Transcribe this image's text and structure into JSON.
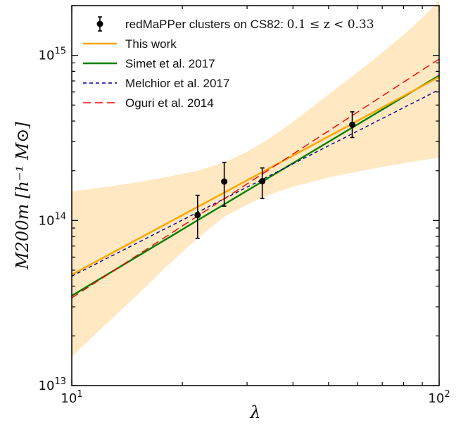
{
  "chart_data": {
    "type": "line",
    "xscale": "log",
    "yscale": "log",
    "xlim": [
      10,
      100
    ],
    "ylim": [
      10000000000000,
      2000000000000000
    ],
    "xlabel": "λ",
    "ylabel": "M200m [h⁻¹ M⊙]",
    "x_ticks": [
      {
        "value": 10,
        "base": "10",
        "exp": "1"
      },
      {
        "value": 100,
        "base": "10",
        "exp": "2"
      }
    ],
    "y_ticks": [
      {
        "value": 10000000000000,
        "base": "10",
        "exp": "13"
      },
      {
        "value": 100000000000000,
        "base": "10",
        "exp": "14"
      },
      {
        "value": 1000000000000000,
        "base": "10",
        "exp": "15"
      }
    ],
    "legend_position": "top-left",
    "legend_entries": [
      {
        "label": "redMaPPer clusters on CS82: ",
        "math": "0.1 ≤ z < 0.33",
        "style": "errorbar",
        "color": "#000000"
      },
      {
        "label": "This work",
        "style": "solid",
        "color": "#FFA500"
      },
      {
        "label": "Simet et al. 2017",
        "style": "solid",
        "color": "#008000"
      },
      {
        "label": "Melchior et al. 2017",
        "style": "dashed-short",
        "color": "#00008B"
      },
      {
        "label": "Oguri et al. 2014",
        "style": "dashed-long",
        "color": "#FF0000"
      }
    ],
    "points": [
      {
        "x": 22,
        "y": 108000000000000,
        "ylow": 78000000000000,
        "yhigh": 142000000000000
      },
      {
        "x": 26,
        "y": 172000000000000,
        "ylow": 122000000000000,
        "yhigh": 225000000000000
      },
      {
        "x": 33,
        "y": 173000000000000,
        "ylow": 136000000000000,
        "yhigh": 208000000000000
      },
      {
        "x": 58,
        "y": 380000000000000,
        "ylow": 318000000000000,
        "yhigh": 455000000000000
      }
    ],
    "series": [
      {
        "name": "This work",
        "color": "#FFA500",
        "x": [
          10,
          100
        ],
        "y": [
          47000000000000,
          740000000000000
        ]
      },
      {
        "name": "Simet et al. 2017",
        "color": "#008000",
        "x": [
          10,
          100
        ],
        "y": [
          35000000000000,
          755000000000000
        ]
      },
      {
        "name": "Melchior et al. 2017",
        "color": "#00008B",
        "x": [
          10,
          100
        ],
        "y": [
          46000000000000,
          620000000000000
        ]
      },
      {
        "name": "Oguri et al. 2014",
        "color": "#FF0000",
        "x": [
          10,
          100
        ],
        "y": [
          34000000000000,
          950000000000000
        ]
      }
    ],
    "band": {
      "color": "#FFE8C2",
      "x": [
        10,
        12,
        15,
        18,
        22,
        26,
        30,
        35,
        40,
        50,
        60,
        70,
        80,
        90,
        100
      ],
      "upper": [
        150000000000000,
        158000000000000,
        170000000000000,
        183000000000000,
        200000000000000,
        225000000000000,
        260000000000000,
        320000000000000,
        395000000000000,
        580000000000000,
        790000000000000,
        1040000000000000,
        1330000000000000,
        1690000000000000,
        2150000000000000
      ],
      "lower": [
        15000000000000,
        22000000000000,
        35000000000000,
        52000000000000,
        78000000000000,
        105000000000000,
        125000000000000,
        145000000000000,
        160000000000000,
        182000000000000,
        198000000000000,
        211000000000000,
        222000000000000,
        232000000000000,
        240000000000000
      ]
    }
  }
}
